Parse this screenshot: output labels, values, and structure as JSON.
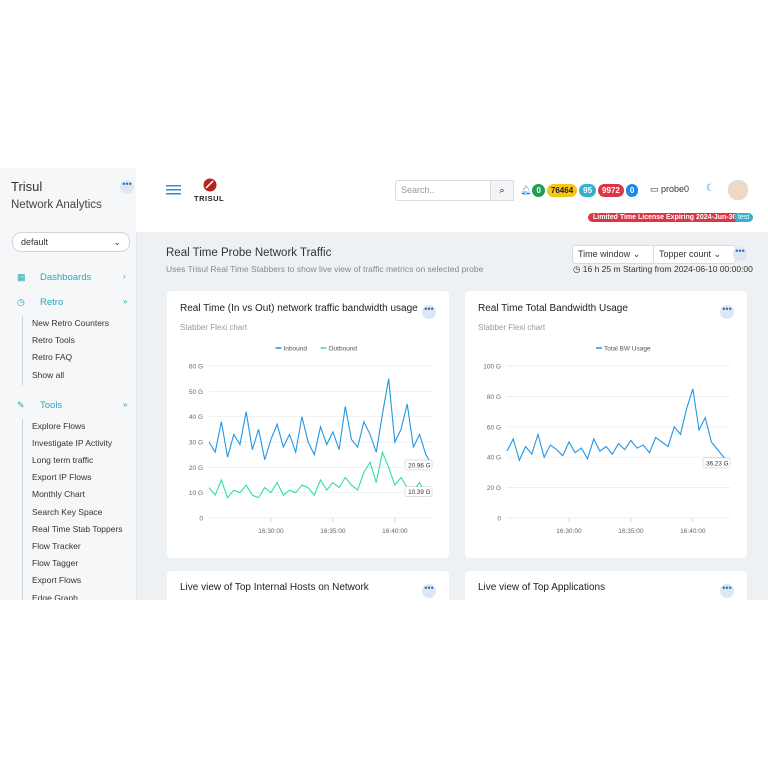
{
  "sidebar": {
    "title": "Trisul",
    "subtitle": "Network Analytics",
    "select": "default",
    "menu": [
      {
        "label": "Dashboards",
        "items": []
      },
      {
        "label": "Retro",
        "items": [
          "New Retro Counters",
          "Retro Tools",
          "Retro FAQ",
          "Show all"
        ]
      },
      {
        "label": "Tools",
        "items": [
          "Explore Flows",
          "Investigate IP Activity",
          "Long term traffic",
          "Export IP Flows",
          "Monthly Chart",
          "Search Key Space",
          "Real Time Stab Toppers",
          "Flow Tracker",
          "Flow Tagger",
          "Export Flows",
          "Edge Graph"
        ]
      }
    ]
  },
  "topbar": {
    "logo": "TRISUL",
    "search_placeholder": "Search..",
    "badges": [
      {
        "value": 0,
        "color": "#1f9d55"
      },
      {
        "value": 76464,
        "color": "#f5c518"
      },
      {
        "value": 95,
        "color": "#36b0c9"
      },
      {
        "value": 9972,
        "color": "#dc3545"
      },
      {
        "value": 0,
        "color": "#1e88e5"
      }
    ],
    "probe": "probe0",
    "license": "Limited Time License Expiring 2024-Jun-30",
    "user": "test"
  },
  "page": {
    "title": "Real Time Probe Network Traffic",
    "subtitle": "Uses Trisul Real Time Stabbers to show live view of traffic metrics on selected probe",
    "time_window": "Time window",
    "topper_count": "Topper count",
    "time_info": "16 h 25 m Starting from 2024-06-10 00:00:00"
  },
  "panels": [
    {
      "title": "Live view of Top Internal Hosts on Network"
    },
    {
      "title": "Live view of Top Applications"
    }
  ],
  "chart_data": [
    {
      "type": "line",
      "title": "Real Time (In vs Out) network traffic bandwidth usage",
      "subtitle": "Stabber Flexi chart",
      "x": [
        "16:25:00",
        "16:25:30",
        "16:26:00",
        "16:26:30",
        "16:27:00",
        "16:27:30",
        "16:28:00",
        "16:28:30",
        "16:29:00",
        "16:29:30",
        "16:30:00",
        "16:30:30",
        "16:31:00",
        "16:31:30",
        "16:32:00",
        "16:32:30",
        "16:33:00",
        "16:33:30",
        "16:34:00",
        "16:34:30",
        "16:35:00",
        "16:35:30",
        "16:36:00",
        "16:36:30",
        "16:37:00",
        "16:37:30",
        "16:38:00",
        "16:38:30",
        "16:39:00",
        "16:39:30",
        "16:40:00",
        "16:40:30",
        "16:41:00",
        "16:41:30",
        "16:42:00",
        "16:42:30",
        "16:43:00"
      ],
      "xlim": [
        "16:25:00",
        "16:43:00"
      ],
      "xticks": [
        "16:30:00",
        "16:35:00",
        "16:40:00"
      ],
      "ylim": [
        0,
        60
      ],
      "yticks": [
        0,
        {
          "value": 10,
          "label": "10 G"
        },
        {
          "value": 20,
          "label": "20 G"
        },
        {
          "value": 30,
          "label": "30 G"
        },
        {
          "value": 40,
          "label": "40 G"
        },
        {
          "value": 50,
          "label": "50 G"
        },
        {
          "value": 60,
          "label": "60 G"
        }
      ],
      "grid": true,
      "series": [
        {
          "name": "Inbound",
          "color": "#2196e6",
          "values": [
            30,
            26,
            38,
            24,
            33,
            29,
            42,
            27,
            35,
            23,
            31,
            37,
            28,
            33,
            26,
            40,
            30,
            25,
            36,
            29,
            34,
            27,
            44,
            31,
            28,
            38,
            33,
            26,
            41,
            55,
            30,
            35,
            45,
            28,
            33,
            25,
            20.96
          ],
          "value_labels": [
            null,
            null,
            null,
            null,
            null,
            null,
            null,
            null,
            null,
            null,
            null,
            null,
            null,
            null,
            null,
            null,
            null,
            null,
            null,
            null,
            null,
            null,
            null,
            null,
            null,
            null,
            null,
            null,
            null,
            null,
            null,
            null,
            null,
            null,
            null,
            null,
            "20.96 G"
          ]
        },
        {
          "name": "Outbound",
          "color": "#2fe0a0",
          "values": [
            12,
            9,
            15,
            8,
            11,
            10,
            13,
            9,
            8,
            12,
            10,
            14,
            9,
            11,
            10,
            13,
            12,
            9,
            15,
            11,
            14,
            12,
            16,
            13,
            11,
            18,
            22,
            14,
            26,
            20,
            13,
            16,
            12,
            11,
            14,
            9,
            10.39
          ],
          "value_labels": [
            null,
            null,
            null,
            null,
            null,
            null,
            null,
            null,
            null,
            null,
            null,
            null,
            null,
            null,
            null,
            null,
            null,
            null,
            null,
            null,
            null,
            null,
            null,
            null,
            null,
            null,
            null,
            null,
            null,
            null,
            null,
            null,
            null,
            null,
            null,
            null,
            "10.39 G"
          ]
        }
      ]
    },
    {
      "type": "line",
      "title": "Real Time Total Bandwidth Usage",
      "subtitle": "Stabber Flexi chart",
      "x": [
        "16:25:00",
        "16:25:30",
        "16:26:00",
        "16:26:30",
        "16:27:00",
        "16:27:30",
        "16:28:00",
        "16:28:30",
        "16:29:00",
        "16:29:30",
        "16:30:00",
        "16:30:30",
        "16:31:00",
        "16:31:30",
        "16:32:00",
        "16:32:30",
        "16:33:00",
        "16:33:30",
        "16:34:00",
        "16:34:30",
        "16:35:00",
        "16:35:30",
        "16:36:00",
        "16:36:30",
        "16:37:00",
        "16:37:30",
        "16:38:00",
        "16:38:30",
        "16:39:00",
        "16:39:30",
        "16:40:00",
        "16:40:30",
        "16:41:00",
        "16:41:30",
        "16:42:00",
        "16:42:30",
        "16:43:00"
      ],
      "xlim": [
        "16:25:00",
        "16:43:00"
      ],
      "xticks": [
        "16:30:00",
        "16:35:00",
        "16:40:00"
      ],
      "ylim": [
        0,
        100
      ],
      "yticks": [
        0,
        {
          "value": 20,
          "label": "20 G"
        },
        {
          "value": 40,
          "label": "40 G"
        },
        {
          "value": 60,
          "label": "60 G"
        },
        {
          "value": 80,
          "label": "80 G"
        },
        {
          "value": 100,
          "label": "100 G"
        }
      ],
      "grid": true,
      "series": [
        {
          "name": "Total BW Usage",
          "color": "#2196e6",
          "values": [
            44,
            52,
            38,
            47,
            42,
            55,
            40,
            48,
            45,
            41,
            50,
            43,
            46,
            39,
            52,
            44,
            47,
            42,
            49,
            45,
            51,
            46,
            48,
            43,
            53,
            50,
            47,
            60,
            55,
            72,
            85,
            58,
            66,
            50,
            45,
            40,
            36.23
          ],
          "value_labels": [
            null,
            null,
            null,
            null,
            null,
            null,
            null,
            null,
            null,
            null,
            null,
            null,
            null,
            null,
            null,
            null,
            null,
            null,
            null,
            null,
            null,
            null,
            null,
            null,
            null,
            null,
            null,
            null,
            null,
            null,
            null,
            null,
            null,
            null,
            null,
            null,
            "36.23 G"
          ]
        }
      ]
    }
  ]
}
